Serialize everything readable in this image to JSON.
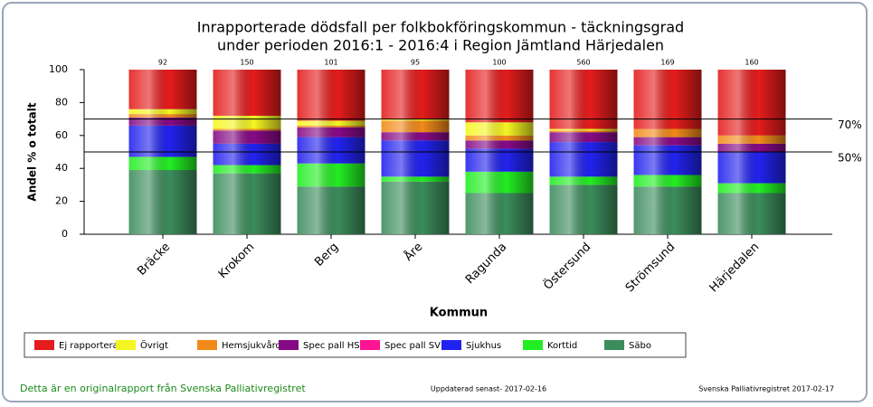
{
  "chart_data": {
    "type": "stacked_bar",
    "title": [
      "Inrapporterade dödsfall per folkbokföringskommun - täckningsgrad",
      "under perioden 2016:1 - 2016:4 i Region Jämtland Härjedalen"
    ],
    "x_label": "Kommun",
    "y_label": "Andel % o totalt",
    "categories": [
      "Bräcke",
      "Krokom",
      "Berg",
      "Åre",
      "Ragunda",
      "Östersund",
      "Strömsund",
      "Härjedalen"
    ],
    "top_labels": [
      "92",
      "150",
      "101",
      "95",
      "100",
      "560",
      "169",
      "160"
    ],
    "ylim": [
      0,
      100
    ],
    "yticks": [
      0,
      20,
      40,
      60,
      80,
      100
    ],
    "reference_lines": [
      {
        "value": 70,
        "label": "70%"
      },
      {
        "value": 50,
        "label": "50%"
      }
    ],
    "series": [
      {
        "name": "Säbo",
        "color": "#3c8c5c",
        "values": [
          39,
          37,
          29,
          32,
          25,
          30,
          29,
          25
        ]
      },
      {
        "name": "Korttid",
        "color": "#22ee22",
        "values": [
          8,
          5,
          14,
          3,
          13,
          5,
          7,
          6
        ]
      },
      {
        "name": "Sjukhus",
        "color": "#2222ee",
        "values": [
          19,
          13,
          16,
          22,
          14,
          21,
          18,
          19
        ]
      },
      {
        "name": "Spec pall SV",
        "color": "#ff1493",
        "values": [
          0,
          0,
          0,
          0,
          0,
          0,
          0,
          0
        ]
      },
      {
        "name": "Spec pall HSV",
        "color": "#850a85",
        "values": [
          5,
          8,
          6,
          5,
          5,
          6,
          5,
          5
        ]
      },
      {
        "name": "Hemsjukvård",
        "color": "#f28a1a",
        "values": [
          2,
          1,
          1,
          7,
          3,
          1,
          5,
          5
        ]
      },
      {
        "name": "Övrigt",
        "color": "#f5f522",
        "values": [
          3,
          8,
          3,
          1,
          8,
          1,
          0,
          0
        ]
      },
      {
        "name": "Ej rapporterat",
        "color": "#e41c1c",
        "values": [
          24,
          28,
          31,
          30,
          32,
          36,
          36,
          40
        ]
      }
    ],
    "legend_order": [
      7,
      6,
      5,
      4,
      3,
      2,
      1,
      0
    ]
  },
  "footer": {
    "left": "Detta är en originalrapport från Svenska Palliativregistret",
    "center": "Uppdaterad senast- 2017-02-16",
    "right": "Svenska Palliativregistret 2017-02-17"
  }
}
